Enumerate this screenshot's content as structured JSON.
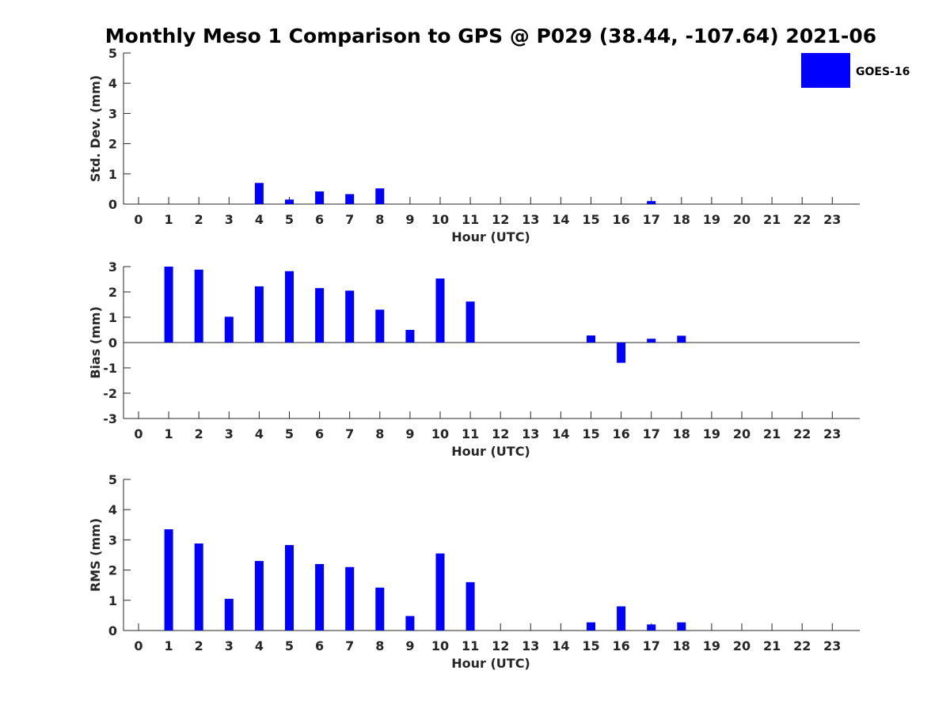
{
  "chart_data": {
    "title": "Monthly Meso 1 Comparison to GPS @ P029 (38.44, -107.64) 2021-06",
    "legend": {
      "label": "GOES-16",
      "color": "#0000ff",
      "placement": "top-right"
    },
    "panels": [
      {
        "type": "bar",
        "ylabel": "Std. Dev. (mm)",
        "xlabel": "Hour (UTC)",
        "ylim": [
          0,
          5
        ],
        "yticks": [
          0,
          1,
          2,
          3,
          4,
          5
        ],
        "categories": [
          0,
          1,
          2,
          3,
          4,
          5,
          6,
          7,
          8,
          9,
          10,
          11,
          12,
          13,
          14,
          15,
          16,
          17,
          18,
          19,
          20,
          21,
          22,
          23
        ],
        "series": [
          {
            "name": "GOES-16",
            "values": [
              null,
              null,
              null,
              null,
              0.7,
              0.15,
              0.42,
              0.33,
              0.52,
              null,
              null,
              null,
              null,
              null,
              null,
              null,
              null,
              0.1,
              null,
              null,
              null,
              null,
              null,
              null
            ]
          }
        ],
        "zero_line": false
      },
      {
        "type": "bar",
        "ylabel": "Bias (mm)",
        "xlabel": "Hour (UTC)",
        "ylim": [
          -3,
          3
        ],
        "yticks": [
          -3,
          -2,
          -1,
          0,
          1,
          2,
          3
        ],
        "categories": [
          0,
          1,
          2,
          3,
          4,
          5,
          6,
          7,
          8,
          9,
          10,
          11,
          12,
          13,
          14,
          15,
          16,
          17,
          18,
          19,
          20,
          21,
          22,
          23
        ],
        "series": [
          {
            "name": "GOES-16",
            "values": [
              null,
              3.0,
              2.88,
              1.02,
              2.22,
              2.82,
              2.15,
              2.05,
              1.3,
              0.5,
              2.53,
              1.62,
              null,
              null,
              null,
              0.28,
              -0.8,
              0.15,
              0.27,
              null,
              null,
              null,
              null,
              null
            ]
          }
        ],
        "zero_line": true
      },
      {
        "type": "bar",
        "ylabel": "RMS (mm)",
        "xlabel": "Hour (UTC)",
        "ylim": [
          0,
          5
        ],
        "yticks": [
          0,
          1,
          2,
          3,
          4,
          5
        ],
        "categories": [
          0,
          1,
          2,
          3,
          4,
          5,
          6,
          7,
          8,
          9,
          10,
          11,
          12,
          13,
          14,
          15,
          16,
          17,
          18,
          19,
          20,
          21,
          22,
          23
        ],
        "series": [
          {
            "name": "GOES-16",
            "values": [
              null,
              3.35,
              2.88,
              1.05,
              2.3,
              2.83,
              2.2,
              2.1,
              1.42,
              0.48,
              2.55,
              1.6,
              null,
              null,
              null,
              0.27,
              0.8,
              0.2,
              0.27,
              null,
              null,
              null,
              null,
              null
            ]
          }
        ],
        "zero_line": false
      }
    ]
  }
}
